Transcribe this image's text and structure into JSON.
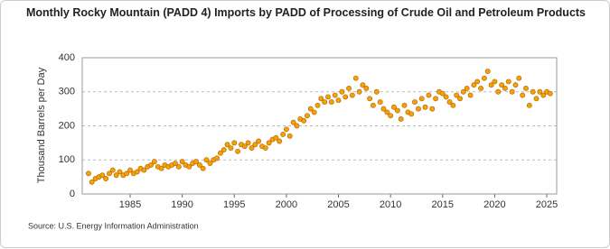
{
  "chart_data": {
    "type": "scatter",
    "title": "Monthly Rocky Mountain (PADD 4) Imports by PADD of Processing of Crude Oil and Petroleum Products",
    "y_label": "Thousand Barrels per Day",
    "source": "Source: U.S. Energy Information Administration",
    "color": "#f0a30a",
    "xlim": [
      1980.4,
      2025.95
    ],
    "xticks": [
      1985,
      1990,
      1995,
      2000,
      2005,
      2010,
      2015,
      2020,
      2025
    ],
    "ylim": [
      0,
      400
    ],
    "yticks": [
      0,
      100,
      200,
      300,
      400
    ],
    "grid": true,
    "x": [
      1981,
      1981.33,
      1981.67,
      1982,
      1982.33,
      1982.67,
      1983,
      1983.33,
      1983.67,
      1984,
      1984.33,
      1984.67,
      1985,
      1985.33,
      1985.67,
      1986,
      1986.33,
      1986.67,
      1987,
      1987.33,
      1987.67,
      1988,
      1988.33,
      1988.67,
      1989,
      1989.33,
      1989.67,
      1990,
      1990.33,
      1990.67,
      1991,
      1991.33,
      1991.67,
      1992,
      1992.33,
      1992.67,
      1993,
      1993.33,
      1993.67,
      1994,
      1994.33,
      1994.67,
      1995,
      1995.33,
      1995.67,
      1996,
      1996.33,
      1996.67,
      1997,
      1997.33,
      1997.67,
      1998,
      1998.33,
      1998.67,
      1999,
      1999.33,
      1999.67,
      2000,
      2000.33,
      2000.67,
      2001,
      2001.33,
      2001.67,
      2002,
      2002.33,
      2002.67,
      2003,
      2003.33,
      2003.67,
      2004,
      2004.33,
      2004.67,
      2005,
      2005.33,
      2005.67,
      2006,
      2006.33,
      2006.67,
      2007,
      2007.33,
      2007.67,
      2008,
      2008.33,
      2008.67,
      2009,
      2009.33,
      2009.67,
      2010,
      2010.33,
      2010.67,
      2011,
      2011.33,
      2011.67,
      2012,
      2012.33,
      2012.67,
      2013,
      2013.33,
      2013.67,
      2014,
      2014.33,
      2014.67,
      2015,
      2015.33,
      2015.67,
      2016,
      2016.33,
      2016.67,
      2017,
      2017.33,
      2017.67,
      2018,
      2018.33,
      2018.67,
      2019,
      2019.33,
      2019.67,
      2020,
      2020.33,
      2020.67,
      2021,
      2021.33,
      2021.67,
      2022,
      2022.33,
      2022.67,
      2023,
      2023.33,
      2023.67,
      2024,
      2024.33,
      2024.67,
      2025,
      2025.33
    ],
    "values": [
      60,
      35,
      45,
      50,
      55,
      45,
      60,
      70,
      55,
      65,
      55,
      60,
      70,
      60,
      65,
      75,
      70,
      80,
      85,
      95,
      80,
      75,
      85,
      80,
      85,
      90,
      80,
      95,
      85,
      80,
      90,
      95,
      85,
      75,
      100,
      90,
      100,
      105,
      120,
      130,
      145,
      135,
      150,
      125,
      145,
      140,
      150,
      135,
      145,
      155,
      140,
      135,
      150,
      160,
      165,
      155,
      175,
      190,
      170,
      210,
      200,
      220,
      215,
      230,
      250,
      240,
      260,
      280,
      270,
      285,
      270,
      290,
      275,
      300,
      285,
      310,
      290,
      340,
      300,
      320,
      310,
      280,
      260,
      300,
      270,
      250,
      240,
      230,
      255,
      245,
      220,
      260,
      240,
      235,
      270,
      250,
      280,
      255,
      290,
      250,
      280,
      300,
      295,
      285,
      270,
      260,
      290,
      280,
      300,
      310,
      290,
      320,
      330,
      310,
      340,
      360,
      320,
      330,
      300,
      320,
      310,
      330,
      300,
      320,
      340,
      290,
      310,
      260,
      300,
      280,
      300,
      290,
      300,
      295
    ]
  }
}
